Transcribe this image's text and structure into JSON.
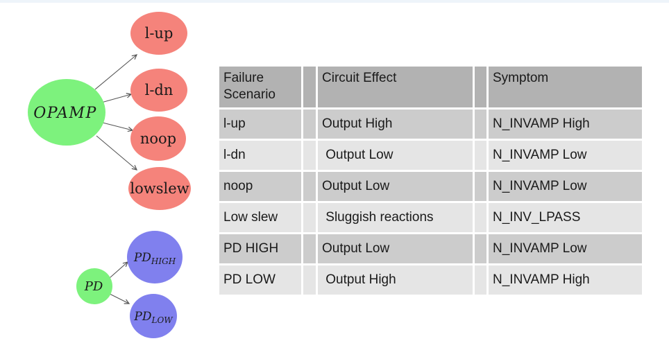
{
  "page": {
    "background": "#ffffff",
    "top_strip_color": "#eef4fa"
  },
  "diagram": {
    "palette": {
      "root_green": "#7df27d",
      "failure_red": "#f5837b",
      "pd_blue": "#8080ee",
      "arrow": "#555555",
      "label_text": "#1a1a1a"
    },
    "opamp_tree": {
      "root": {
        "label": "OPAMP"
      },
      "children": [
        {
          "label": "l-up"
        },
        {
          "label": "l-dn"
        },
        {
          "label": "noop"
        },
        {
          "label": "lowslew"
        }
      ]
    },
    "pd_tree": {
      "root": {
        "label": "PD"
      },
      "children": [
        {
          "label": "PD",
          "subscript": "HIGH"
        },
        {
          "label": "PD",
          "subscript": "LOW"
        }
      ]
    }
  },
  "table": {
    "headers": [
      "Failure Scenario",
      "Circuit Effect",
      "Symptom"
    ],
    "rows": [
      [
        "l-up",
        "Output High",
        "N_INVAMP High"
      ],
      [
        "l-dn",
        " Output Low",
        "N_INVAMP Low"
      ],
      [
        "noop",
        "Output Low",
        "N_INVAMP Low"
      ],
      [
        "Low slew",
        " Sluggish reactions",
        "N_INV_LPASS"
      ],
      [
        "PD HIGH",
        "Output Low",
        "N_INVAMP Low"
      ],
      [
        "PD LOW",
        " Output High",
        "N_INVAMP High"
      ]
    ],
    "colors": {
      "header_bg": "#b2b2b2",
      "row_odd_bg": "#cccccc",
      "row_even_bg": "#e5e5e5",
      "gap": "#ffffff"
    }
  }
}
